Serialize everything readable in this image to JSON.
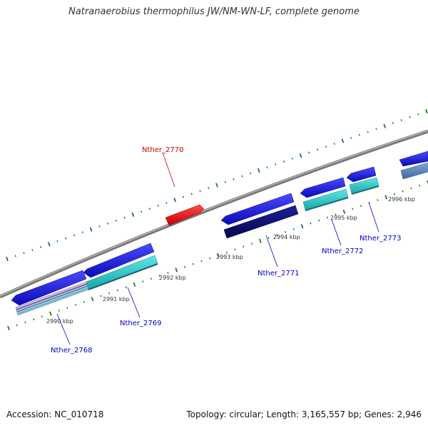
{
  "map": {
    "title": "Natranaerobius thermophilus JW/NM-WN-LF, complete genome",
    "accession": "Accession: NC_010718",
    "summary": "Topology: circular; Length: 3,165,557 bp; Genes: 2,946"
  },
  "ruler": {
    "labels": [
      "2990 kbp",
      "2991 kbp",
      "2992 kbp",
      "2993 kbp",
      "2994 kbp",
      "2995 kbp",
      "2996 kbp"
    ]
  },
  "genes": [
    {
      "id": "g2768",
      "label": "Nther_2768",
      "color": "#0000cc"
    },
    {
      "id": "g2769",
      "label": "Nther_2769",
      "color": "#0000cc"
    },
    {
      "id": "g2770",
      "label": "Nther_2770",
      "color": "#cc0000"
    },
    {
      "id": "g2771",
      "label": "Nther_2771",
      "color": "#0000cc"
    },
    {
      "id": "g2772",
      "label": "Nther_2772",
      "color": "#0000cc"
    },
    {
      "id": "g2773",
      "label": "Nther_2773",
      "color": "#0000cc"
    }
  ],
  "colors": {
    "backbone": "#8a8a8a",
    "tick": "#1e7a1e",
    "cds_forward": "#1a1aee",
    "cds_reverse": "#ee2222",
    "cog_dark": "#0c0c73",
    "cog_cyan": "#22cccc",
    "cog_steel": "#4f7fb0",
    "cog_purple": "#6a5a9a"
  }
}
